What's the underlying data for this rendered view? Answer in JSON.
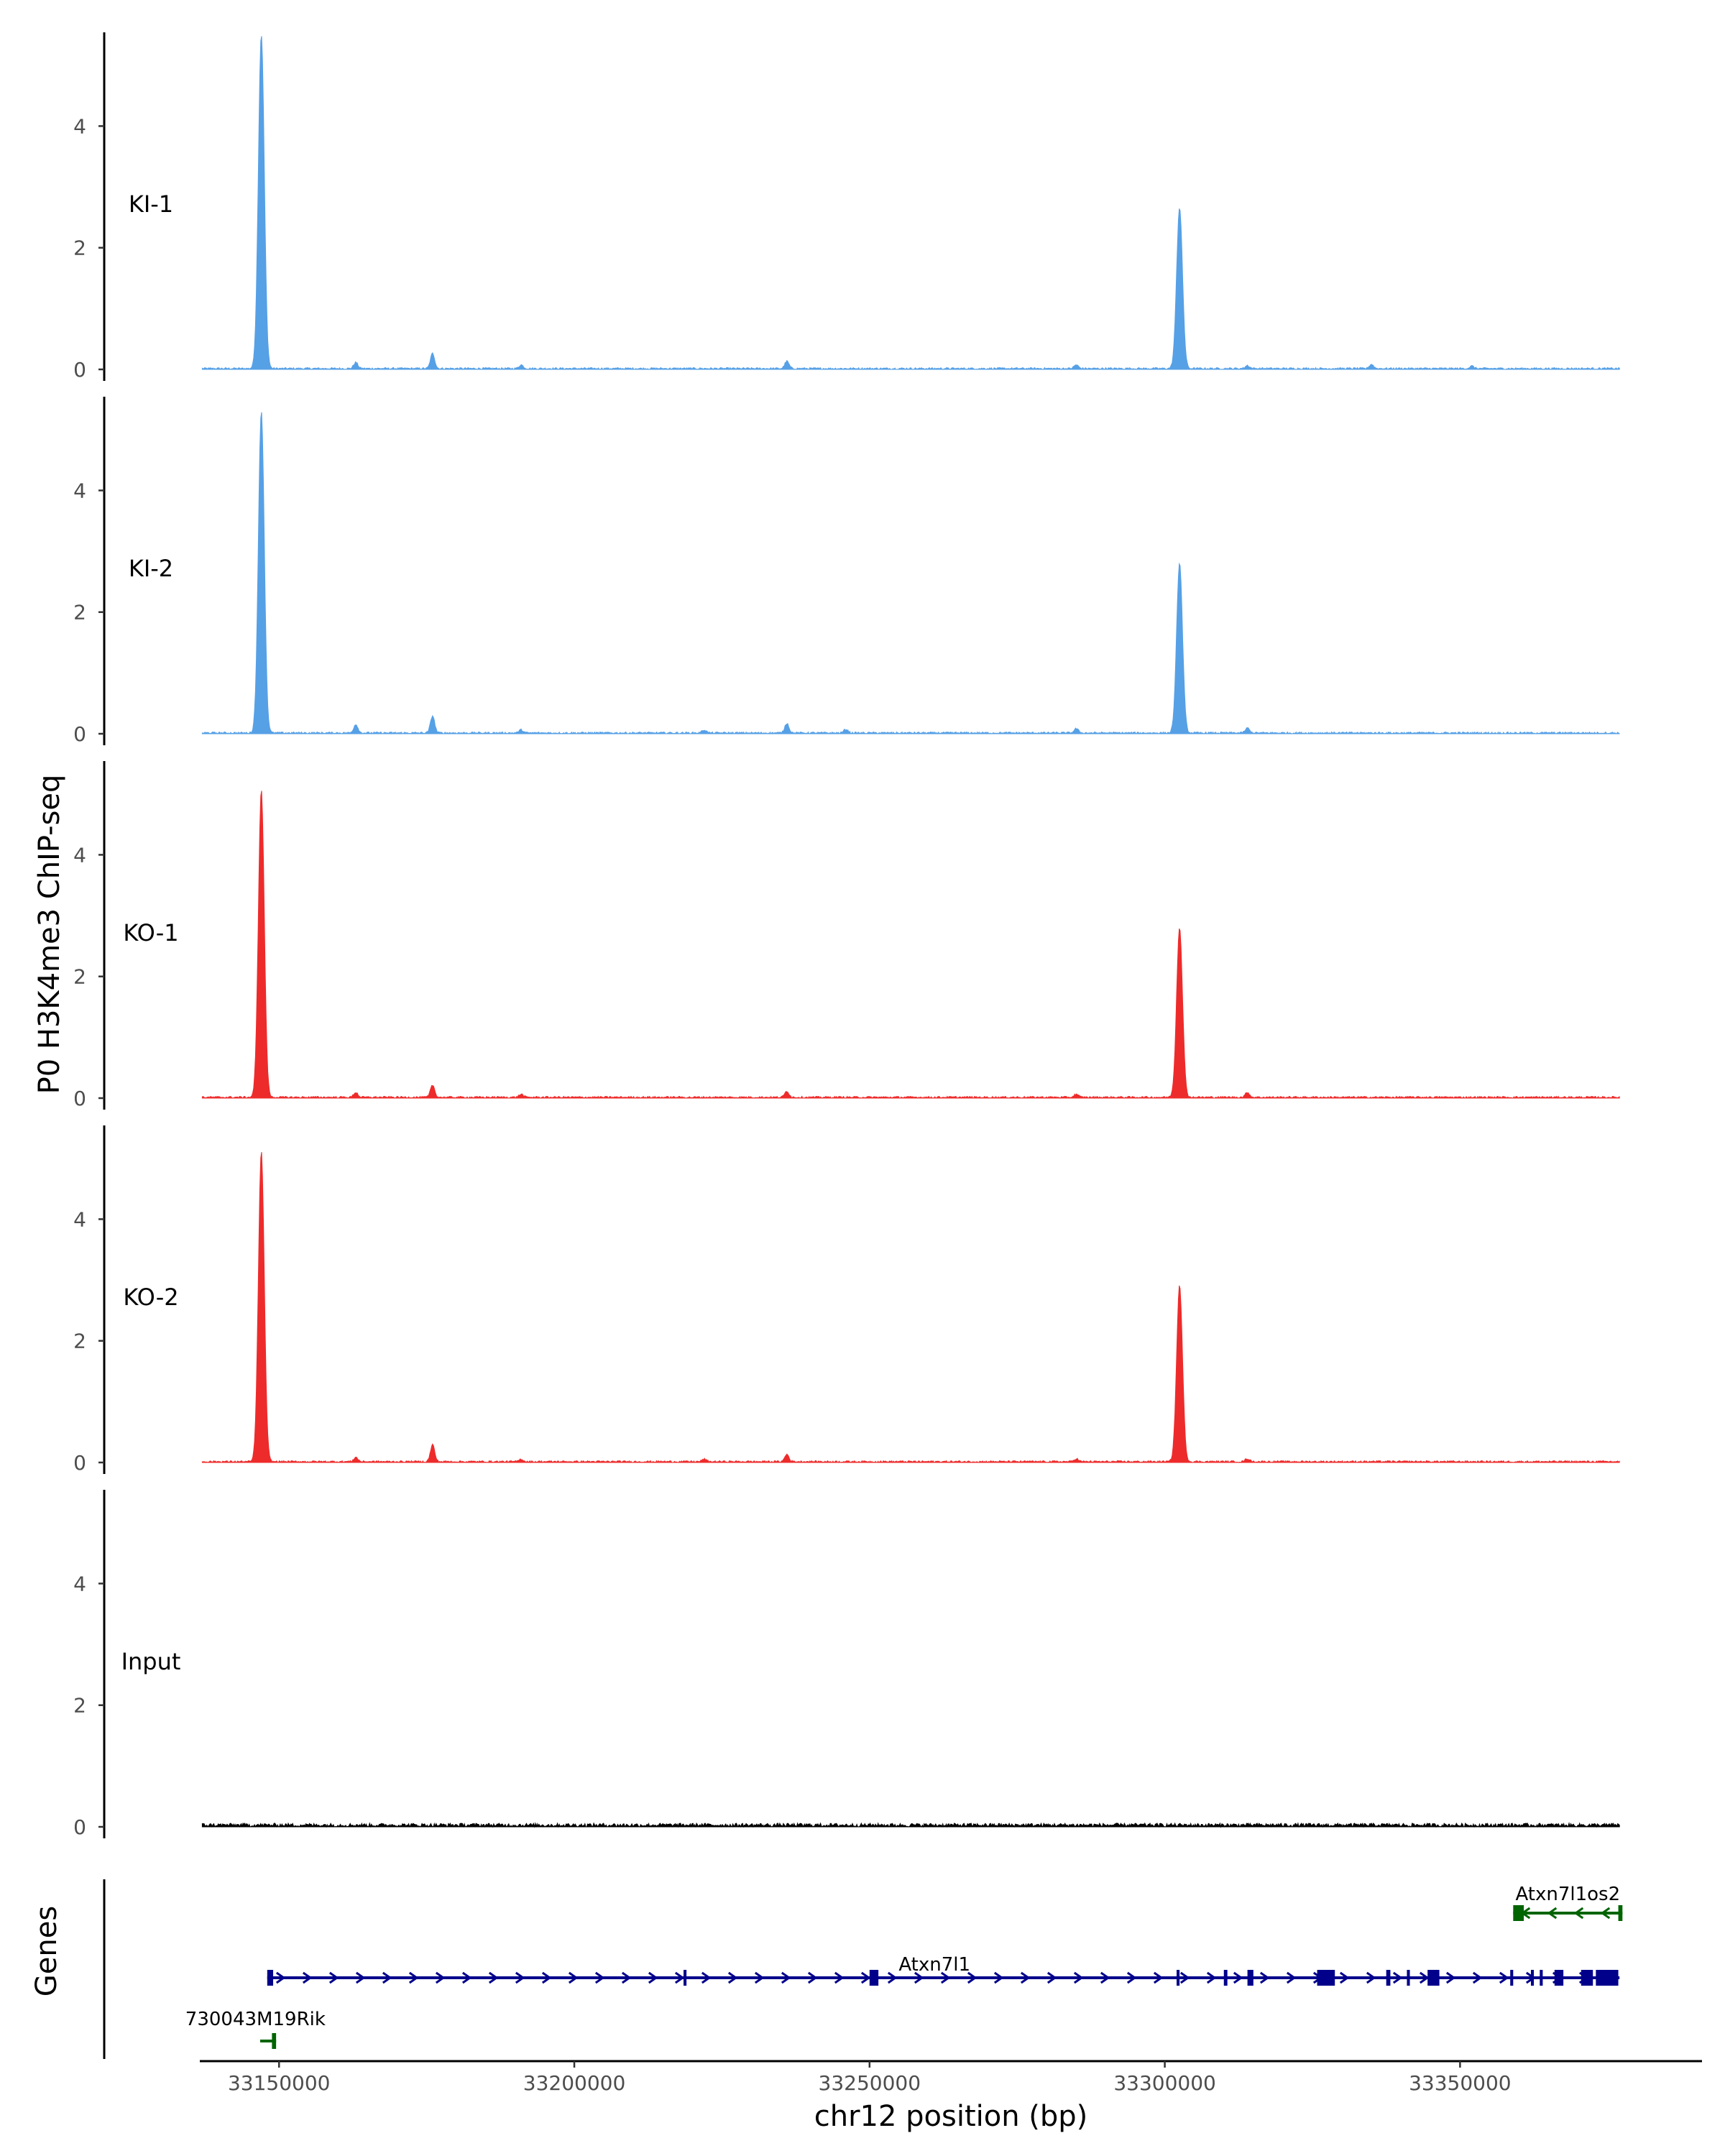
{
  "chart_data": {
    "type": "area",
    "title": "",
    "xlabel": "chr12 position (bp)",
    "ylabel": "P0 H3K4me3 ChIP-seq",
    "genes_label": "Genes",
    "xlim": [
      33135000,
      33390000
    ],
    "x_ticks": [
      33150000,
      33200000,
      33250000,
      33300000,
      33350000
    ],
    "ylim": [
      0,
      5.6
    ],
    "y_ticks": [
      0,
      2,
      4
    ],
    "grid": false,
    "tracks": [
      {
        "name": "KI-1",
        "color": "#56a0e6",
        "peaks": [
          {
            "x": 33147000,
            "y": 5.5
          },
          {
            "x": 33163000,
            "y": 0.1
          },
          {
            "x": 33176000,
            "y": 0.25
          },
          {
            "x": 33191000,
            "y": 0.06
          },
          {
            "x": 33236000,
            "y": 0.12
          },
          {
            "x": 33285000,
            "y": 0.06
          },
          {
            "x": 33302500,
            "y": 2.65
          },
          {
            "x": 33314000,
            "y": 0.05
          },
          {
            "x": 33335000,
            "y": 0.07
          },
          {
            "x": 33352000,
            "y": 0.04
          }
        ]
      },
      {
        "name": "KI-2",
        "color": "#56a0e6",
        "peaks": [
          {
            "x": 33147000,
            "y": 5.3
          },
          {
            "x": 33163000,
            "y": 0.14
          },
          {
            "x": 33176000,
            "y": 0.28
          },
          {
            "x": 33191000,
            "y": 0.05
          },
          {
            "x": 33222000,
            "y": 0.05
          },
          {
            "x": 33236000,
            "y": 0.16
          },
          {
            "x": 33246000,
            "y": 0.06
          },
          {
            "x": 33285000,
            "y": 0.07
          },
          {
            "x": 33302500,
            "y": 2.8
          },
          {
            "x": 33314000,
            "y": 0.08
          }
        ]
      },
      {
        "name": "KO-1",
        "color": "#ee2b2b",
        "peaks": [
          {
            "x": 33147000,
            "y": 5.05
          },
          {
            "x": 33163000,
            "y": 0.08
          },
          {
            "x": 33176000,
            "y": 0.2
          },
          {
            "x": 33191000,
            "y": 0.05
          },
          {
            "x": 33236000,
            "y": 0.1
          },
          {
            "x": 33285000,
            "y": 0.05
          },
          {
            "x": 33302500,
            "y": 2.8
          },
          {
            "x": 33314000,
            "y": 0.08
          }
        ]
      },
      {
        "name": "KO-2",
        "color": "#ee2b2b",
        "peaks": [
          {
            "x": 33147000,
            "y": 5.1
          },
          {
            "x": 33163000,
            "y": 0.07
          },
          {
            "x": 33176000,
            "y": 0.28
          },
          {
            "x": 33191000,
            "y": 0.04
          },
          {
            "x": 33222000,
            "y": 0.04
          },
          {
            "x": 33236000,
            "y": 0.12
          },
          {
            "x": 33285000,
            "y": 0.05
          },
          {
            "x": 33302500,
            "y": 2.9
          },
          {
            "x": 33314000,
            "y": 0.05
          }
        ]
      },
      {
        "name": "Input",
        "color": "#000000",
        "peaks": []
      }
    ],
    "genes": [
      {
        "name": "Atxn7l1os2",
        "strand": "-",
        "color": "#006400",
        "start": 33359000,
        "end": 33377500,
        "exons": [
          [
            33359000,
            33360800
          ],
          [
            33376800,
            33377500
          ]
        ]
      },
      {
        "name": "Atxn7l1",
        "strand": "+",
        "color": "#00008b",
        "start": 33148000,
        "end": 33377000,
        "exons": [
          [
            33148000,
            33149000
          ],
          [
            33218500,
            33219000
          ],
          [
            33250000,
            33251500
          ],
          [
            33302000,
            33302500
          ],
          [
            33310000,
            33310600
          ],
          [
            33314000,
            33315000
          ],
          [
            33325800,
            33328800
          ],
          [
            33337500,
            33338200
          ],
          [
            33341000,
            33341500
          ],
          [
            33344500,
            33346500
          ],
          [
            33358500,
            33359000
          ],
          [
            33362000,
            33362500
          ],
          [
            33363500,
            33364000
          ],
          [
            33366000,
            33367500
          ],
          [
            33370500,
            33372500
          ],
          [
            33373000,
            33376800
          ]
        ]
      },
      {
        "name": "730043M19Rik",
        "strand": "-",
        "color": "#006400",
        "start": 33146800,
        "end": 33149500,
        "exons": [
          [
            33148800,
            33149500
          ]
        ]
      }
    ]
  }
}
